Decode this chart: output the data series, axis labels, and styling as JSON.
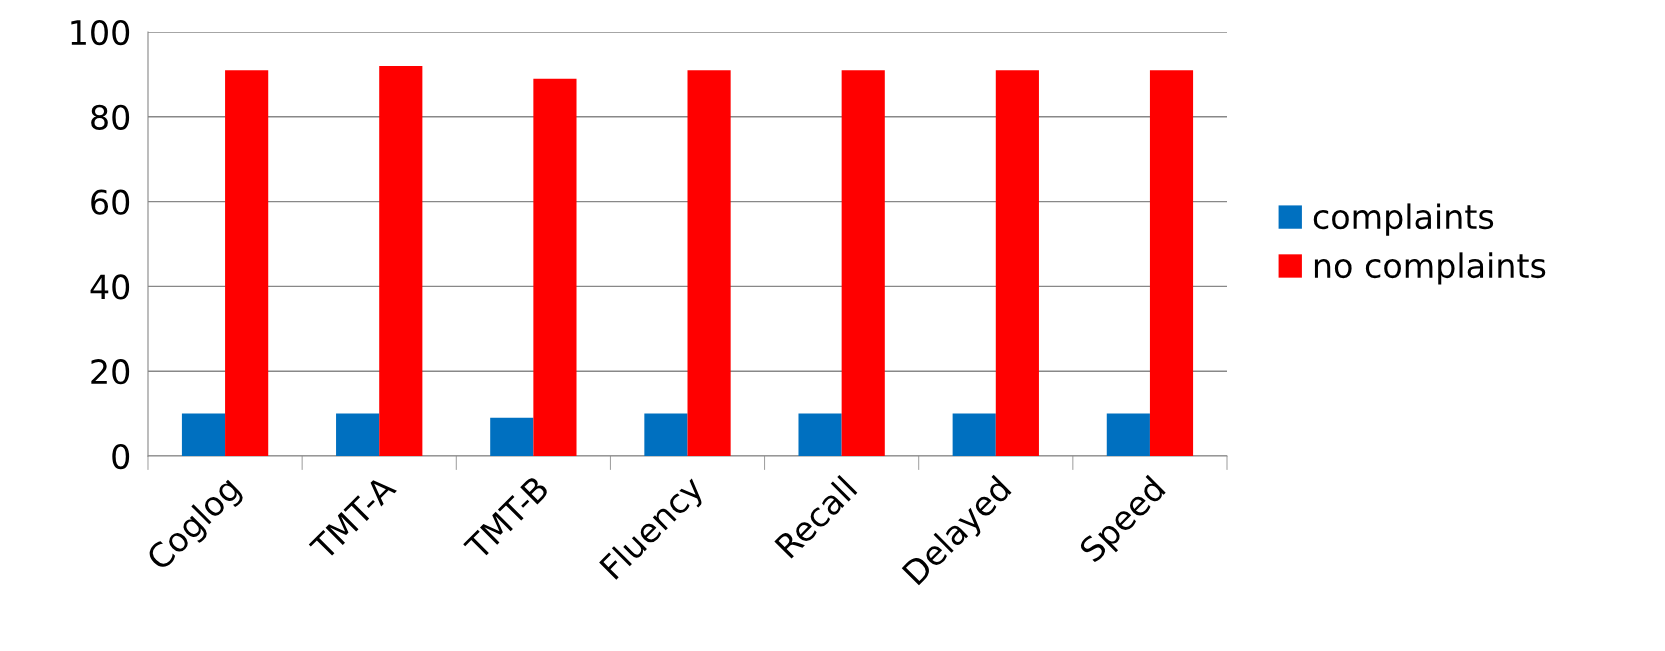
{
  "chart_data": {
    "type": "bar",
    "categories": [
      "Coglog",
      "TMT-A",
      "TMT-B",
      "Fluency",
      "Recall",
      "Delayed",
      "Speed"
    ],
    "series": [
      {
        "name": "complaints",
        "color": "#0070c0",
        "values": [
          10,
          10,
          9,
          10,
          10,
          10,
          10
        ]
      },
      {
        "name": "no complaints",
        "color": "#ff0000",
        "values": [
          91,
          92,
          89,
          91,
          91,
          91,
          91
        ]
      }
    ],
    "ylim": [
      0,
      100
    ],
    "yticks": [
      0,
      20,
      40,
      60,
      80,
      100
    ],
    "grid": "y",
    "legend": "right"
  }
}
